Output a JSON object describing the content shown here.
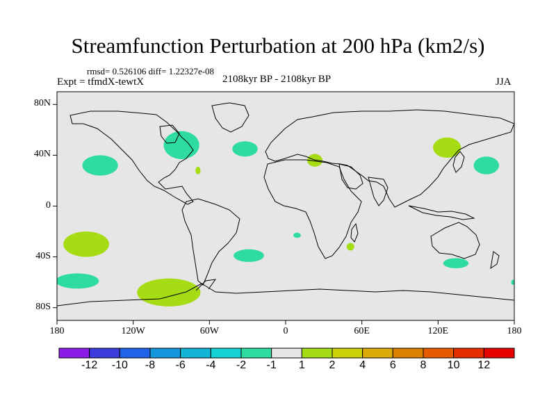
{
  "title": "Streamfunction Perturbation at 200 hPa (km2/s)",
  "stats": "rmsd= 0.526106 diff= 1.22327e-08",
  "experiment": "Expt = tfmdX-tewtX",
  "period": "2108kyr BP - 2108kyr BP",
  "season": "JJA",
  "colors": {
    "land_ocean_background": "#e6e6e6",
    "coastline": "#000000",
    "neg_1_to_2": "#2fdca0",
    "pos_1_to_2": "#a6dc14"
  },
  "chart_data": {
    "type": "map-contour",
    "projection": "cylindrical-equidistant",
    "lon_range": [
      -180,
      180
    ],
    "lat_range": [
      -90,
      90
    ],
    "lon_ticks": [
      "180",
      "120W",
      "60W",
      "0",
      "60E",
      "120E",
      "180"
    ],
    "lat_ticks": [
      "80N",
      "40N",
      "0",
      "40S",
      "80S"
    ],
    "colorbar": {
      "boundaries": [
        "-12",
        "-10",
        "-8",
        "-6",
        "-4",
        "-2",
        "-1",
        "1",
        "2",
        "4",
        "6",
        "8",
        "10",
        "12"
      ],
      "colors": [
        "#8a1ce6",
        "#3c3cdc",
        "#1e64e6",
        "#1496dc",
        "#14b4d7",
        "#14d2d2",
        "#2fdca0",
        "#e6e6e6",
        "#a6dc14",
        "#cad20a",
        "#dcaa05",
        "#dc8200",
        "#e65a00",
        "#e62d00",
        "#e60000"
      ]
    },
    "features": [
      {
        "name": "north-pacific-positive",
        "sign": "positive",
        "range": "1 to 2",
        "center_lon": -157,
        "center_lat": -30,
        "lon_halfwidth": 18,
        "lat_halfwidth": 10
      },
      {
        "name": "east-pacific-positive",
        "sign": "positive",
        "range": "1 to 2",
        "center_lon": -92,
        "center_lat": -68,
        "lon_halfwidth": 25,
        "lat_halfwidth": 11
      },
      {
        "name": "gulf-positive",
        "sign": "positive",
        "range": "1 to 2",
        "center_lon": -69,
        "center_lat": 28,
        "lon_halfwidth": 2,
        "lat_halfwidth": 3
      },
      {
        "name": "north-africa-positive",
        "sign": "positive",
        "range": "1 to 2",
        "center_lon": 23,
        "center_lat": 36,
        "lon_halfwidth": 6,
        "lat_halfwidth": 5
      },
      {
        "name": "east-asia-positive",
        "sign": "positive",
        "range": "1 to 2",
        "center_lon": 127,
        "center_lat": 46,
        "lon_halfwidth": 11,
        "lat_halfwidth": 8
      },
      {
        "name": "south-africa-positive",
        "sign": "positive",
        "range": "1 to 2",
        "center_lon": 51,
        "center_lat": -32,
        "lon_halfwidth": 3,
        "lat_halfwidth": 3
      },
      {
        "name": "north-america-negative",
        "sign": "negative",
        "range": "-2 to -1",
        "center_lon": -82,
        "center_lat": 48,
        "lon_halfwidth": 14,
        "lat_halfwidth": 11
      },
      {
        "name": "north-pacific-negative",
        "sign": "negative",
        "range": "-2 to -1",
        "center_lon": -146,
        "center_lat": 32,
        "lon_halfwidth": 14,
        "lat_halfwidth": 8
      },
      {
        "name": "north-atlantic-negative",
        "sign": "negative",
        "range": "-2 to -1",
        "center_lon": -32,
        "center_lat": 45,
        "lon_halfwidth": 10,
        "lat_halfwidth": 6
      },
      {
        "name": "northwest-pacific-negative",
        "sign": "negative",
        "range": "-2 to -1",
        "center_lon": 158,
        "center_lat": 32,
        "lon_halfwidth": 10,
        "lat_halfwidth": 7
      },
      {
        "name": "south-atlantic-negative",
        "sign": "negative",
        "range": "-2 to -1",
        "center_lon": -29,
        "center_lat": -39,
        "lon_halfwidth": 12,
        "lat_halfwidth": 5
      },
      {
        "name": "south-pacific-negative",
        "sign": "negative",
        "range": "-2 to -1",
        "center_lon": -164,
        "center_lat": -59,
        "lon_halfwidth": 17,
        "lat_halfwidth": 6
      },
      {
        "name": "southern-ocean-negative",
        "sign": "negative",
        "range": "-2 to -1",
        "center_lon": 134,
        "center_lat": -45,
        "lon_halfwidth": 10,
        "lat_halfwidth": 4
      },
      {
        "name": "south-atlantic-small-negative",
        "sign": "negative",
        "range": "-2 to -1",
        "center_lon": 9,
        "center_lat": -23,
        "lon_halfwidth": 3,
        "lat_halfwidth": 2
      },
      {
        "name": "indian-edge-negative",
        "sign": "negative",
        "range": "-2 to -1",
        "center_lon": 179,
        "center_lat": -60,
        "lon_halfwidth": 1.5,
        "lat_halfwidth": 2
      }
    ]
  }
}
